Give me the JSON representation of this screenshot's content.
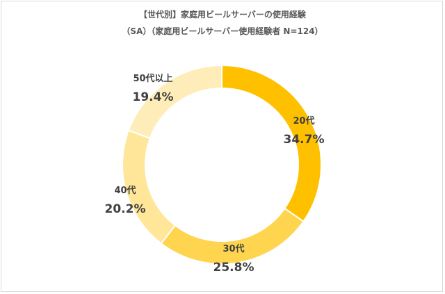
{
  "chart_data": {
    "type": "pie",
    "subtype": "donut",
    "title": "【世代別】家庭用ビールサーバーの使用経験",
    "subtitle": "（SA）（家庭用ビールサーバー使用経験者 N=124）",
    "categories": [
      "20代",
      "30代",
      "40代",
      "50代以上"
    ],
    "values": [
      34.7,
      25.8,
      20.2,
      19.4
    ],
    "value_labels": [
      "34.7%",
      "25.8%",
      "20.2%",
      "19.4%"
    ],
    "colors": [
      "#FFC000",
      "#FFD54F",
      "#FFE699",
      "#FFEDB9"
    ],
    "legend": "none",
    "start": "top, clockwise"
  }
}
